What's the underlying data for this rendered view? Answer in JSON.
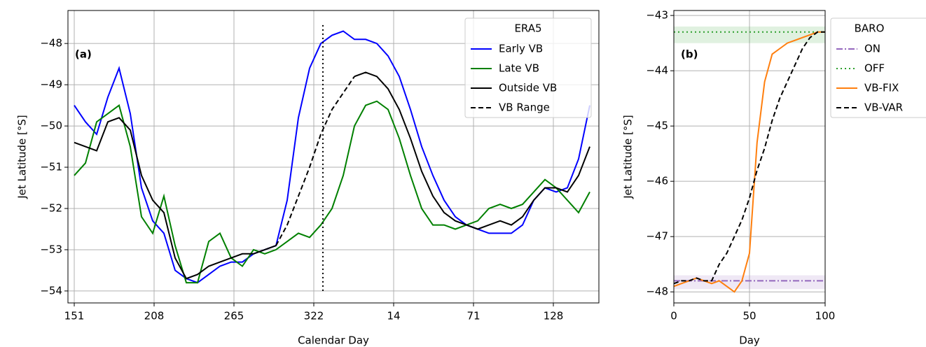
{
  "chart_data": [
    {
      "type": "line",
      "annotation": "(a)",
      "xlabel": "Calendar Day",
      "ylabel": "Jet Latitude [°S]",
      "xlim": [
        146.5,
        525.5
      ],
      "ylim": [
        -54.29,
        -47.2
      ],
      "grid": true,
      "legend_title": "ERA5",
      "legend_loc": "upper right",
      "xticks": [
        151,
        208,
        265,
        322,
        {
          "value": 379,
          "label": "14"
        },
        {
          "value": 436,
          "label": "71"
        },
        {
          "value": 493,
          "label": "128"
        }
      ],
      "yticks": [
        {
          "value": -54,
          "label": "−54"
        },
        {
          "value": -53,
          "label": "−53"
        },
        {
          "value": -52,
          "label": "−52"
        },
        {
          "value": -51,
          "label": "−51"
        },
        {
          "value": -50,
          "label": "−50"
        },
        {
          "value": -49,
          "label": "−49"
        },
        {
          "value": -48,
          "label": "−48"
        }
      ],
      "vline": {
        "x": 328.5,
        "ymin": -54,
        "ymax": -47.5
      },
      "x": [
        151,
        159,
        167,
        175,
        183,
        191,
        199,
        207,
        215,
        223,
        231,
        239,
        247,
        255,
        263,
        271,
        279,
        287,
        295,
        303,
        311,
        319,
        327,
        335,
        343,
        351,
        359,
        367,
        375,
        383,
        391,
        399,
        407,
        415,
        423,
        431,
        439,
        447,
        455,
        463,
        471,
        479,
        487,
        495,
        503,
        511,
        519
      ],
      "series": [
        {
          "name": "Early VB",
          "color": "#0000ff",
          "style": "solid",
          "values": [
            -49.5,
            -49.9,
            -50.2,
            -49.3,
            -48.6,
            -49.7,
            -51.5,
            -52.3,
            -52.6,
            -53.5,
            -53.7,
            -53.8,
            -53.6,
            -53.4,
            -53.3,
            -53.3,
            -53.1,
            -53.0,
            -52.9,
            -51.8,
            -49.8,
            -48.6,
            -48.0,
            -47.8,
            -47.7,
            -47.9,
            -47.9,
            -48.0,
            -48.3,
            -48.8,
            -49.6,
            -50.5,
            -51.2,
            -51.8,
            -52.2,
            -52.4,
            -52.5,
            -52.6,
            -52.6,
            -52.6,
            -52.4,
            -51.8,
            -51.5,
            -51.6,
            -51.5,
            -50.8,
            -49.5
          ]
        },
        {
          "name": "Late VB",
          "color": "#008000",
          "style": "solid",
          "values": [
            -51.2,
            -50.9,
            -49.9,
            -49.7,
            -49.5,
            -50.5,
            -52.2,
            -52.6,
            -51.7,
            -52.9,
            -53.8,
            -53.8,
            -52.8,
            -52.6,
            -53.2,
            -53.4,
            -53.0,
            -53.1,
            -53.0,
            -52.8,
            -52.6,
            -52.7,
            -52.4,
            -52.0,
            -51.2,
            -50.0,
            -49.5,
            -49.4,
            -49.6,
            -50.3,
            -51.2,
            -52.0,
            -52.4,
            -52.4,
            -52.5,
            -52.4,
            -52.3,
            -52.0,
            -51.9,
            -52.0,
            -51.9,
            -51.6,
            -51.3,
            -51.5,
            -51.8,
            -52.1,
            -51.6
          ]
        },
        {
          "name": "Outside VB",
          "color": "#000000",
          "style": "solid",
          "values": [
            -50.4,
            -50.5,
            -50.6,
            -49.9,
            -49.8,
            -50.1,
            -51.2,
            -51.8,
            -52.1,
            -53.2,
            -53.7,
            -53.6,
            -53.4,
            -53.3,
            -53.2,
            -53.1,
            -53.1,
            -53.0,
            -52.9,
            null,
            null,
            null,
            null,
            null,
            null,
            -48.8,
            -48.7,
            -48.8,
            -49.1,
            -49.6,
            -50.3,
            -51.1,
            -51.7,
            -52.1,
            -52.3,
            -52.4,
            -52.5,
            -52.4,
            -52.3,
            -52.4,
            -52.2,
            -51.8,
            -51.5,
            -51.5,
            -51.6,
            -51.2,
            -50.5
          ]
        },
        {
          "name": "VB Range",
          "color": "#000000",
          "style": "dashed",
          "values": [
            null,
            null,
            null,
            null,
            null,
            null,
            null,
            null,
            null,
            null,
            null,
            null,
            null,
            null,
            null,
            null,
            null,
            null,
            -52.9,
            -52.4,
            -51.7,
            -51.0,
            -50.2,
            -49.6,
            -49.2,
            -48.8,
            null,
            null,
            null,
            null,
            null,
            null,
            null,
            null,
            null,
            null,
            null,
            null,
            null,
            null,
            null,
            null,
            null,
            null,
            null,
            null,
            null
          ]
        }
      ]
    },
    {
      "type": "line",
      "annotation": "(b)",
      "xlabel": "Day",
      "ylabel": "Jet Latitude [°S]",
      "xlim": [
        0,
        100
      ],
      "ylim": [
        -48.2,
        -42.91
      ],
      "grid": true,
      "legend_title": "BARO",
      "legend_loc": "outside right",
      "xticks": [
        0,
        50,
        100
      ],
      "yticks": [
        {
          "value": -48,
          "label": "−48"
        },
        {
          "value": -47,
          "label": "−47"
        },
        {
          "value": -46,
          "label": "−46"
        },
        {
          "value": -45,
          "label": "−45"
        },
        {
          "value": -44,
          "label": "−44"
        },
        {
          "value": -43,
          "label": "−43"
        }
      ],
      "x": [
        0,
        5,
        10,
        15,
        20,
        25,
        30,
        35,
        40,
        45,
        50,
        55,
        60,
        65,
        70,
        75,
        80,
        85,
        90,
        95,
        100
      ],
      "series": [
        {
          "name": "ON",
          "color": "#9467bd",
          "style": "dashdot",
          "band": [
            -47.7,
            -47.95
          ],
          "values": [
            -47.8,
            -47.8,
            -47.8,
            -47.8,
            -47.8,
            -47.8,
            -47.8,
            -47.8,
            -47.8,
            -47.8,
            -47.8,
            -47.8,
            -47.8,
            -47.8,
            -47.8,
            -47.8,
            -47.8,
            -47.8,
            -47.8,
            -47.8,
            -47.8
          ]
        },
        {
          "name": "OFF",
          "color": "#2ca02c",
          "style": "dotted",
          "band": [
            -43.2,
            -43.5
          ],
          "values": [
            -43.3,
            -43.3,
            -43.3,
            -43.3,
            -43.3,
            -43.3,
            -43.3,
            -43.3,
            -43.3,
            -43.3,
            -43.3,
            -43.3,
            -43.3,
            -43.3,
            -43.3,
            -43.3,
            -43.3,
            -43.3,
            -43.3,
            -43.3,
            -43.3
          ]
        },
        {
          "name": "VB-FIX",
          "color": "#ff7f0e",
          "style": "solid",
          "values": [
            -47.9,
            -47.85,
            -47.8,
            -47.75,
            -47.8,
            -47.85,
            -47.8,
            -47.9,
            -48.0,
            -47.8,
            -47.3,
            -45.3,
            -44.2,
            -43.7,
            -43.6,
            -43.5,
            -43.45,
            -43.4,
            -43.35,
            -43.3,
            -43.3
          ]
        },
        {
          "name": "VB-VAR",
          "color": "#000000",
          "style": "dashed",
          "values": [
            -47.85,
            -47.8,
            -47.8,
            -47.75,
            -47.8,
            -47.8,
            -47.5,
            -47.3,
            -47.0,
            -46.7,
            -46.3,
            -45.8,
            -45.4,
            -44.9,
            -44.5,
            -44.2,
            -43.9,
            -43.6,
            -43.4,
            -43.3,
            -43.3
          ]
        }
      ]
    }
  ]
}
